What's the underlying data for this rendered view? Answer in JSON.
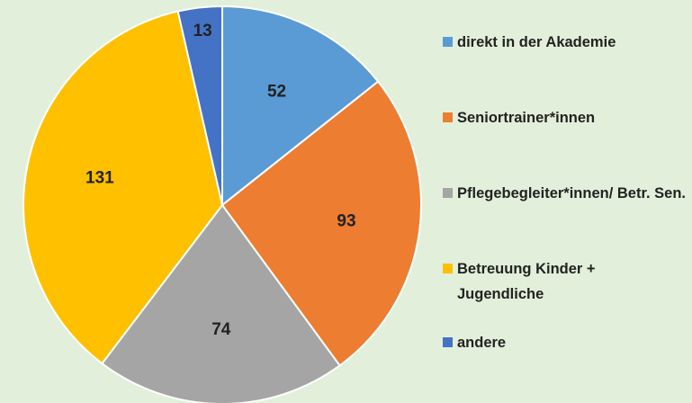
{
  "chart_data": {
    "type": "pie",
    "categories": [
      "direkt in der Akademie",
      "Seniortrainer*innen",
      "Pflegebegleiter*innen/ Betr. Sen.",
      "Betreuung Kinder + Jugendliche",
      "andere"
    ],
    "values": [
      52,
      93,
      74,
      131,
      13
    ],
    "colors": [
      "#5b9bd5",
      "#ed7d31",
      "#a5a5a5",
      "#ffc000",
      "#4472c4"
    ],
    "legend": "right"
  }
}
